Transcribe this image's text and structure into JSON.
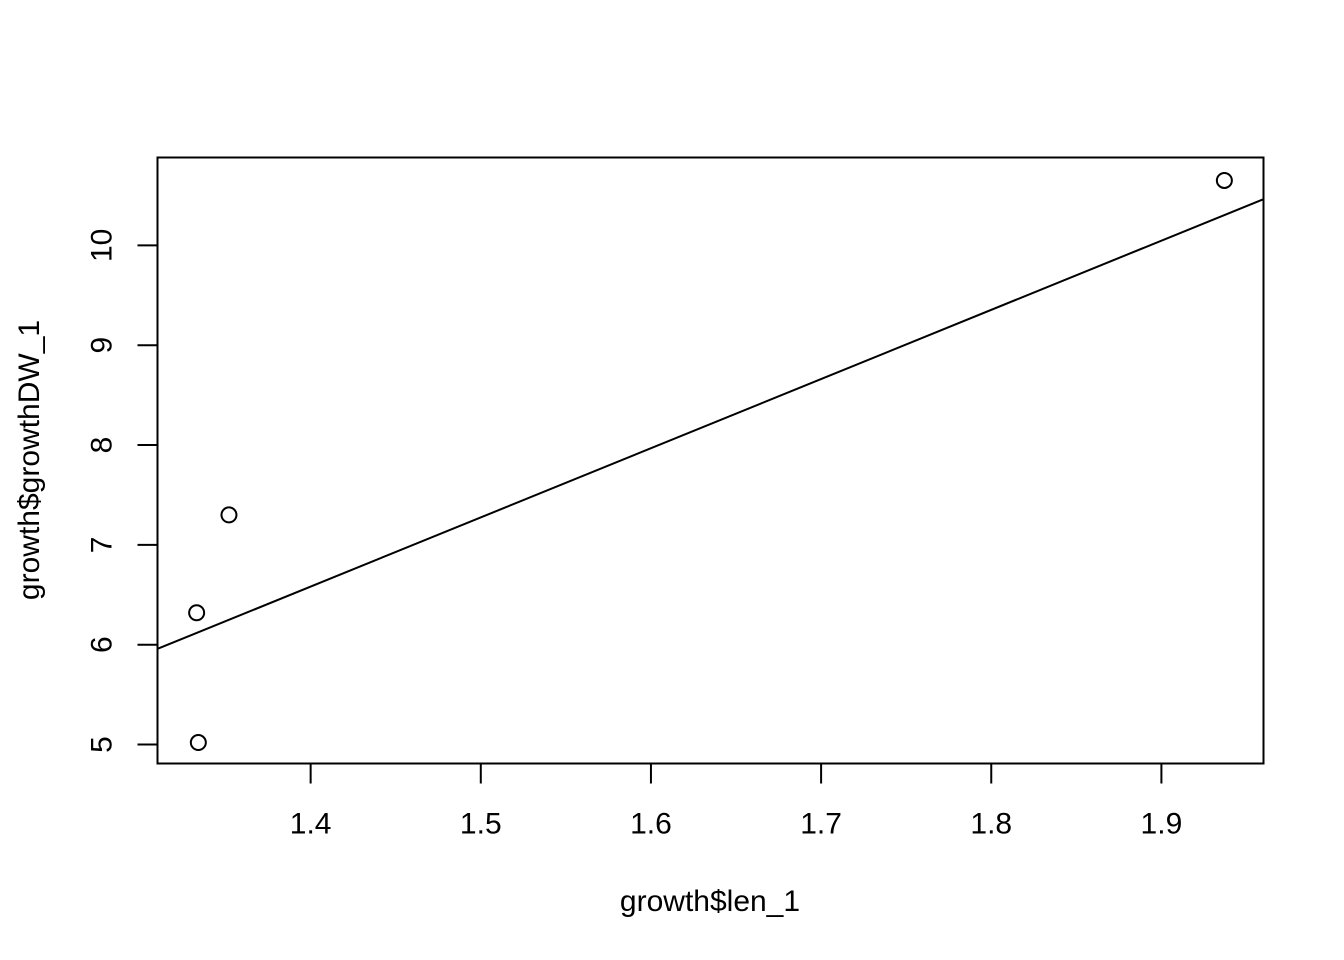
{
  "chart_data": {
    "type": "scatter",
    "title": "",
    "xlabel": "growth$len_1",
    "ylabel": "growth$growthDW_1",
    "xlim": [
      1.31,
      1.96
    ],
    "ylim": [
      4.81,
      10.88
    ],
    "x_ticks": [
      "1.4",
      "1.5",
      "1.6",
      "1.7",
      "1.8",
      "1.9"
    ],
    "y_ticks": [
      "5",
      "6",
      "7",
      "8",
      "9",
      "10"
    ],
    "grid": false,
    "points": [
      {
        "x": 1.334,
        "y": 5.02
      },
      {
        "x": 1.333,
        "y": 6.32
      },
      {
        "x": 1.352,
        "y": 7.3
      },
      {
        "x": 1.937,
        "y": 10.65
      }
    ],
    "fit_line": {
      "intercept": -3.12,
      "slope": 6.93
    }
  }
}
